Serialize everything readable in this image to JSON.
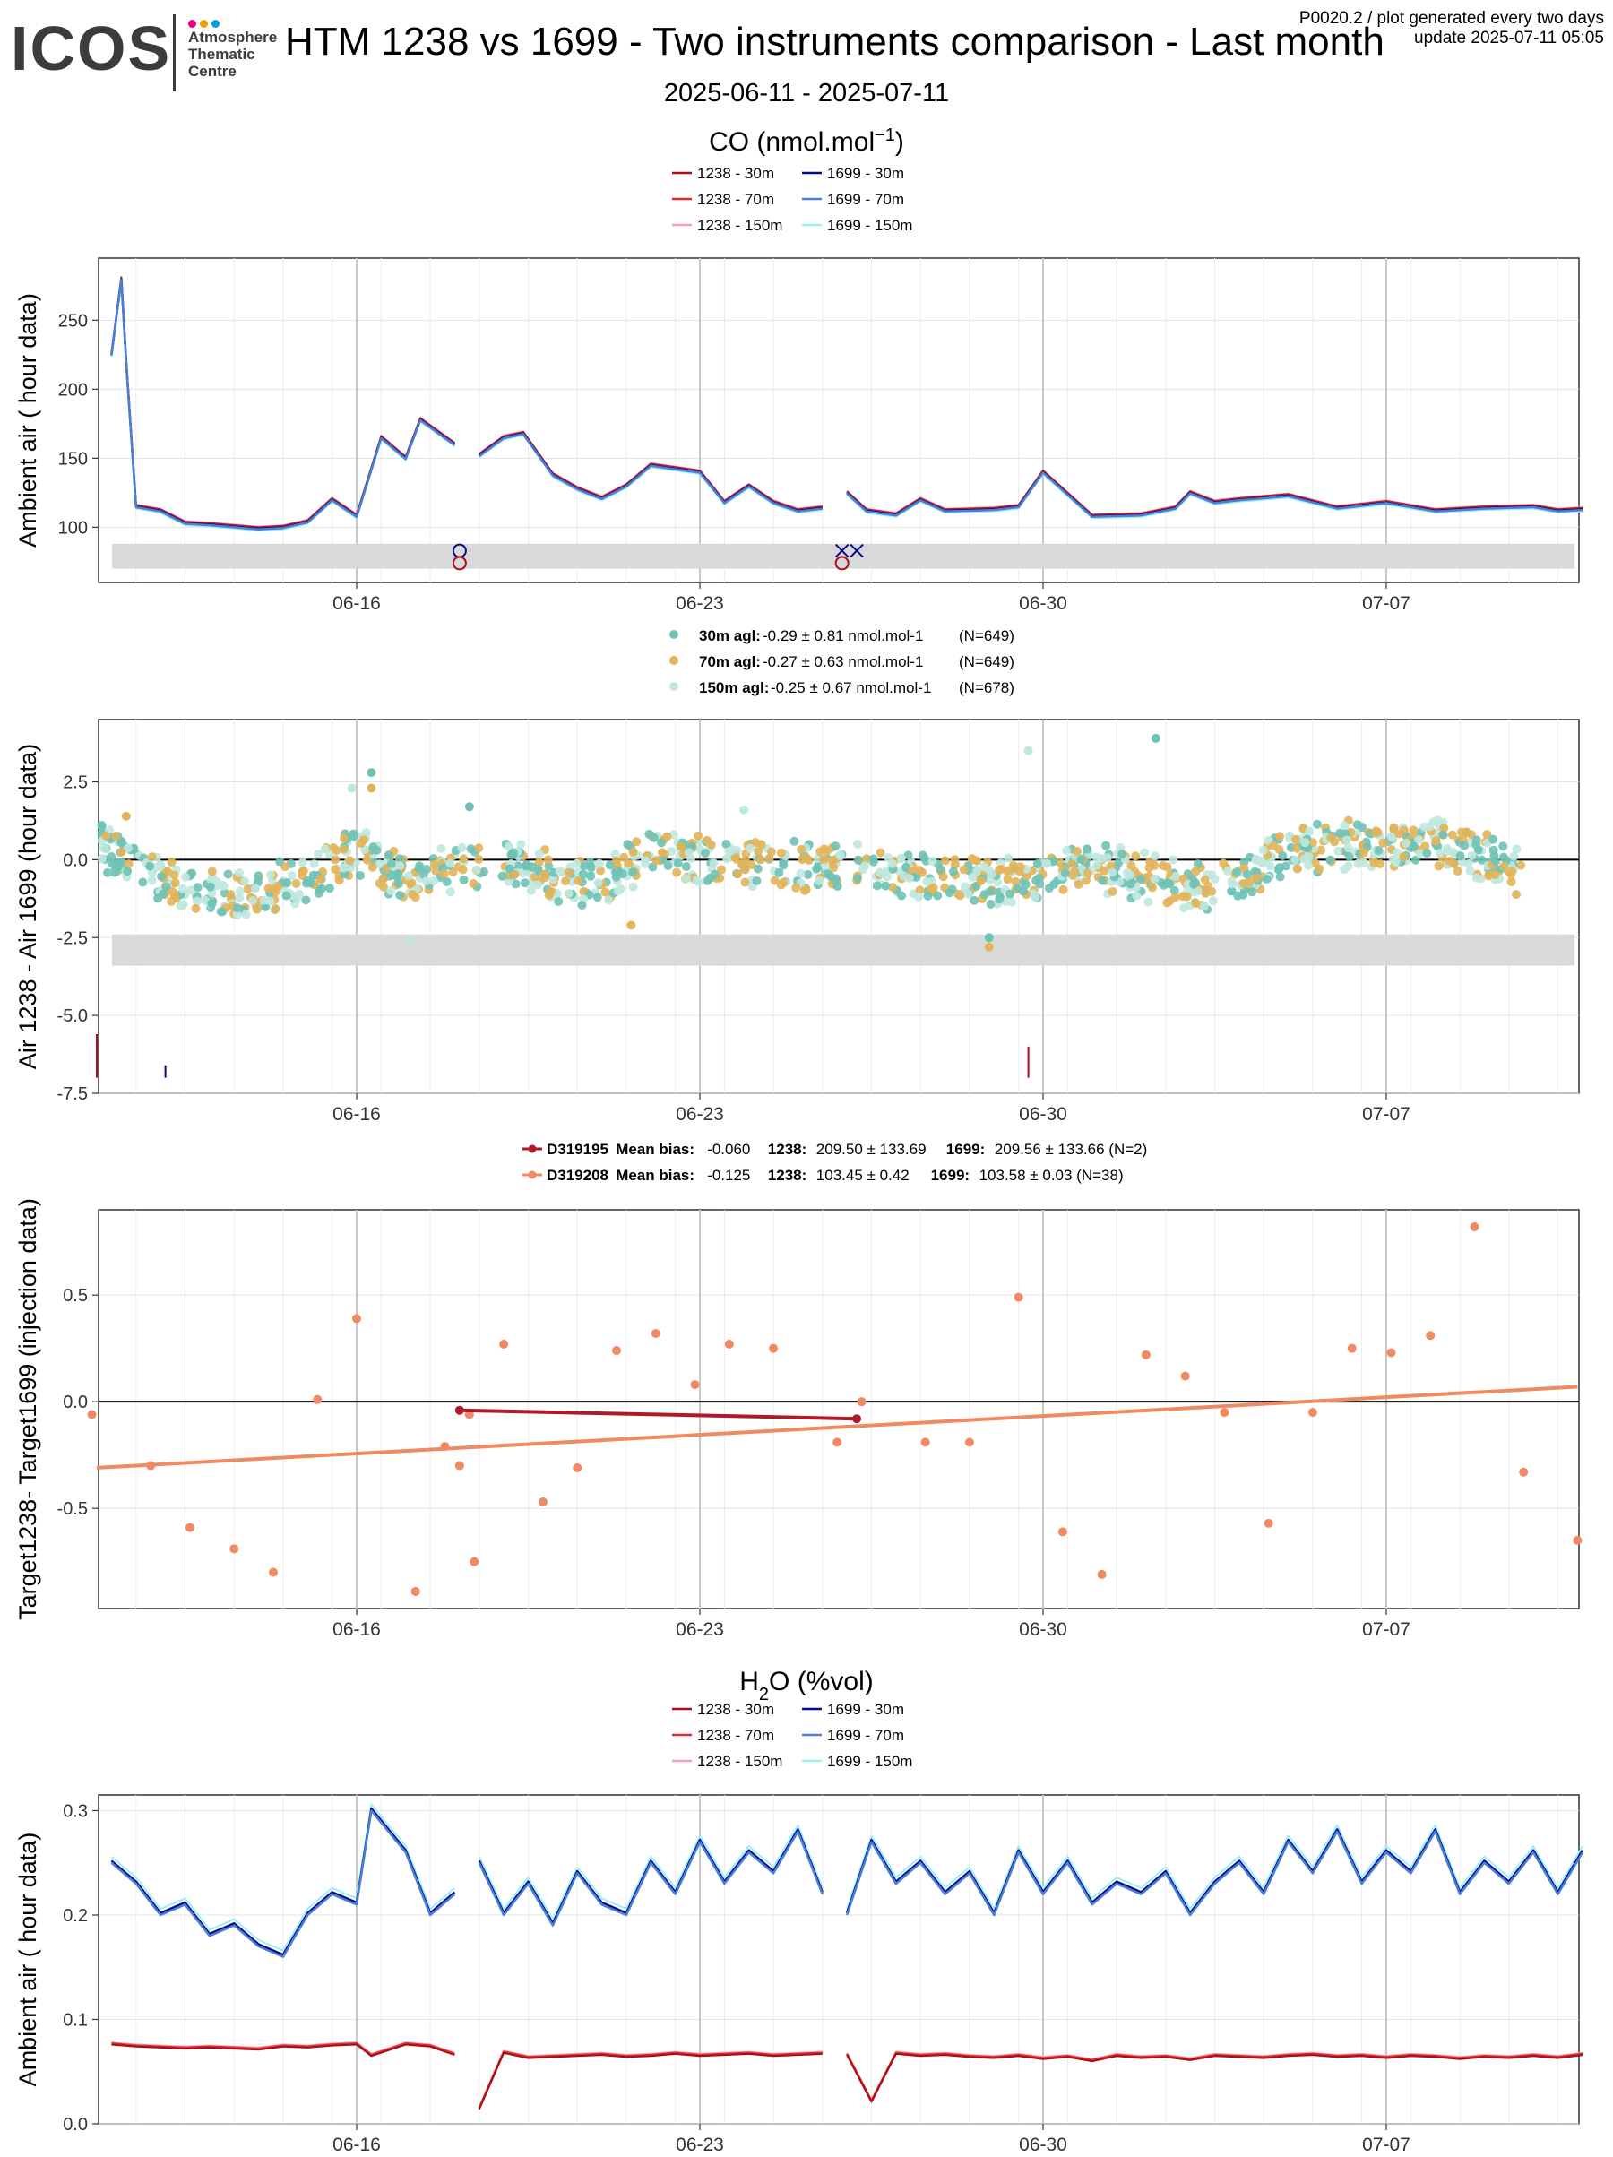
{
  "header": {
    "logo": "ICOS",
    "logo_sub": [
      "Atmosphere",
      "Thematic",
      "Centre"
    ],
    "title": "HTM 1238 vs 1699 - Two instruments comparison - Last month",
    "date_range": "2025-06-11 - 2025-07-11",
    "meta_line1": "P0020.2 / plot generated every two days",
    "meta_line2": "update  2025-07-11 05:05"
  },
  "colors": {
    "c1238_30": "#a50f15",
    "c1238_70": "#de2d26",
    "c1238_150": "#fc9fb5",
    "c1699_30": "#08088a",
    "c1699_70": "#4a7fd4",
    "c1699_150": "#9ef0f8",
    "bias30": "#6fc2b6",
    "bias70": "#e2b45a",
    "bias150": "#bfe8df",
    "target1": "#b2182b",
    "target2": "#ef8a62",
    "band": "#d9d9d9"
  },
  "chart_data": [
    {
      "type": "line",
      "title": "CO (nmol.mol-1)",
      "ylabel": "Ambient air ( hour data)",
      "xlabel": "",
      "x_ticks": [
        "06-16",
        "06-23",
        "06-30",
        "07-07"
      ],
      "ylim": [
        60,
        295
      ],
      "y_ticks": [
        100,
        150,
        200,
        250
      ],
      "legend": [
        "1238 - 30m",
        "1699 - 30m",
        "1238 - 70m",
        "1699 - 70m",
        "1238 - 150m",
        "1699 - 150m"
      ],
      "series_x_days": [
        0,
        0.2,
        0.3,
        0.5,
        1,
        1.5,
        2,
        3,
        3.5,
        4,
        4.5,
        5,
        5.5,
        6,
        6.3,
        7,
        7.5,
        8,
        8.4,
        9,
        9.5,
        10,
        10.5,
        11,
        12,
        12.5,
        13,
        13.5,
        14,
        14.5,
        15,
        15.4,
        16,
        16.5,
        17,
        18,
        18.5,
        19,
        20,
        21,
        21.7,
        22,
        22.5,
        23,
        24,
        25,
        26,
        27,
        28,
        29,
        29.5,
        30
      ],
      "series_values": [
        225,
        280,
        220,
        115,
        112,
        103,
        102,
        99,
        100,
        104,
        120,
        108,
        165,
        150,
        178,
        160,
        152,
        165,
        168,
        138,
        128,
        121,
        130,
        145,
        140,
        118,
        130,
        118,
        112,
        114,
        125,
        112,
        109,
        120,
        112,
        113,
        115,
        140,
        108,
        109,
        114,
        125,
        118,
        120,
        123,
        114,
        118,
        112,
        114,
        115,
        112,
        113
      ],
      "gap_after_x_days": [
        7.2,
        14.8
      ],
      "band": [
        70,
        88
      ],
      "flag_markers": [
        {
          "x_day": 7.1,
          "value": 83,
          "symbol": "circle",
          "series": "1699"
        },
        {
          "x_day": 7.1,
          "value": 74,
          "symbol": "circle",
          "series": "1238"
        },
        {
          "x_day": 14.9,
          "value": 83,
          "symbol": "cross",
          "series": "1699"
        },
        {
          "x_day": 15.2,
          "value": 83,
          "symbol": "cross",
          "series": "1699"
        },
        {
          "x_day": 14.9,
          "value": 74,
          "symbol": "circle",
          "series": "1238"
        }
      ]
    },
    {
      "type": "scatter",
      "title": "",
      "ylabel": "Air 1238 - Air 1699 (hour data)",
      "x_ticks": [
        "06-16",
        "06-23",
        "06-30",
        "07-07"
      ],
      "ylim": [
        -7.5,
        4.5
      ],
      "y_ticks": [
        -7.5,
        -5.0,
        -2.5,
        0.0,
        2.5
      ],
      "band": [
        -3.4,
        -2.4
      ],
      "series": [
        {
          "name": "30m agl",
          "stats": "-0.29 ± 0.81 nmol.mol-1",
          "n": "(N=649)"
        },
        {
          "name": "70m agl",
          "stats": "-0.27 ± 0.63 nmol.mol-1",
          "n": "(N=649)"
        },
        {
          "name": "150m agl",
          "stats": "-0.25 ± 0.67 nmol.mol-1",
          "n": "(N=678)"
        }
      ],
      "trend_days": [
        0,
        1,
        2,
        3,
        4,
        5,
        5.5,
        6,
        7,
        8,
        9,
        10,
        11,
        12,
        13,
        14,
        15,
        16,
        17,
        18,
        19,
        20,
        21,
        22,
        23,
        24,
        25,
        26,
        27,
        28,
        29
      ],
      "trend_values": [
        0.2,
        -0.6,
        -1.1,
        -1.0,
        -0.6,
        0.3,
        -0.2,
        -0.7,
        -0.3,
        0.0,
        -0.6,
        -0.8,
        0.3,
        0.0,
        -0.1,
        -0.2,
        -0.2,
        -0.5,
        -0.6,
        -0.8,
        -0.5,
        -0.2,
        -0.6,
        -0.9,
        -0.6,
        0.3,
        0.5,
        0.4,
        0.5,
        0.1,
        -0.6
      ],
      "outliers": [
        {
          "x_day": -0.2,
          "value": 1.1
        },
        {
          "x_day": 0.3,
          "value": 1.4
        },
        {
          "x_day": 4.9,
          "value": 2.3
        },
        {
          "x_day": 5.3,
          "value": 2.8
        },
        {
          "x_day": 5.3,
          "value": 2.3
        },
        {
          "x_day": 6.1,
          "value": -2.6
        },
        {
          "x_day": 7.3,
          "value": 1.7
        },
        {
          "x_day": 10.6,
          "value": -2.1
        },
        {
          "x_day": 12.9,
          "value": 1.6
        },
        {
          "x_day": 17.9,
          "value": -2.5
        },
        {
          "x_day": 17.9,
          "value": -2.8
        },
        {
          "x_day": 18.7,
          "value": 3.5
        },
        {
          "x_day": 21.3,
          "value": 3.9
        }
      ],
      "ticks_low": [
        {
          "x_day": -0.3,
          "from": -7.0,
          "to": -5.6,
          "series": "1238"
        },
        {
          "x_day": 1.1,
          "from": -7.0,
          "to": -6.6,
          "series": "1699"
        },
        {
          "x_day": 18.7,
          "from": -7.0,
          "to": -6.0,
          "series": "1238"
        }
      ]
    },
    {
      "type": "scatter",
      "title": "",
      "ylabel": "Target1238- Target1699 (injection data)",
      "x_ticks": [
        "06-16",
        "06-23",
        "06-30",
        "07-07"
      ],
      "ylim": [
        -0.97,
        0.9
      ],
      "y_ticks": [
        -0.5,
        0.0,
        0.5
      ],
      "series": [
        {
          "name": "D319195",
          "mean_bias": "-0.060",
          "v1238": "209.50 ± 133.69",
          "v1699": "209.56 ± 133.66 (N=2)"
        },
        {
          "name": "D319208",
          "mean_bias": "-0.125",
          "v1238": "103.45 ± 0.42",
          "v1699": "103.58 ± 0.03 (N=38)"
        }
      ],
      "d319195_points": [
        {
          "x_day": 7.1,
          "value": -0.04
        },
        {
          "x_day": 15.2,
          "value": -0.08
        }
      ],
      "d319208_fit": [
        {
          "x_day": -0.3,
          "value": -0.31
        },
        {
          "x_day": 29.9,
          "value": 0.07
        }
      ],
      "d319208_points": [
        {
          "x_day": -0.4,
          "value": -0.06
        },
        {
          "x_day": 0.8,
          "value": -0.3
        },
        {
          "x_day": 1.6,
          "value": -0.59
        },
        {
          "x_day": 2.5,
          "value": -0.69
        },
        {
          "x_day": 3.3,
          "value": -0.8
        },
        {
          "x_day": 4.2,
          "value": 0.01
        },
        {
          "x_day": 5.0,
          "value": 0.39
        },
        {
          "x_day": 6.2,
          "value": -0.89
        },
        {
          "x_day": 6.8,
          "value": -0.21
        },
        {
          "x_day": 7.1,
          "value": -0.3
        },
        {
          "x_day": 7.3,
          "value": -0.06
        },
        {
          "x_day": 7.4,
          "value": -0.75
        },
        {
          "x_day": 8.0,
          "value": 0.27
        },
        {
          "x_day": 8.8,
          "value": -0.47
        },
        {
          "x_day": 9.5,
          "value": -0.31
        },
        {
          "x_day": 10.3,
          "value": 0.24
        },
        {
          "x_day": 11.1,
          "value": 0.32
        },
        {
          "x_day": 11.9,
          "value": 0.08
        },
        {
          "x_day": 12.6,
          "value": 0.27
        },
        {
          "x_day": 13.5,
          "value": 0.25
        },
        {
          "x_day": 14.8,
          "value": -0.19
        },
        {
          "x_day": 15.3,
          "value": 0.0
        },
        {
          "x_day": 16.6,
          "value": -0.19
        },
        {
          "x_day": 17.5,
          "value": -0.19
        },
        {
          "x_day": 18.5,
          "value": 0.49
        },
        {
          "x_day": 19.4,
          "value": -0.61
        },
        {
          "x_day": 20.2,
          "value": -0.81
        },
        {
          "x_day": 21.1,
          "value": 0.22
        },
        {
          "x_day": 21.9,
          "value": 0.12
        },
        {
          "x_day": 22.7,
          "value": -0.05
        },
        {
          "x_day": 23.6,
          "value": -0.57
        },
        {
          "x_day": 24.5,
          "value": -0.05
        },
        {
          "x_day": 25.3,
          "value": 0.25
        },
        {
          "x_day": 26.1,
          "value": 0.23
        },
        {
          "x_day": 26.9,
          "value": 0.31
        },
        {
          "x_day": 27.8,
          "value": 0.82
        },
        {
          "x_day": 28.8,
          "value": -0.33
        },
        {
          "x_day": 29.9,
          "value": -0.65
        }
      ]
    },
    {
      "type": "line",
      "title": "H2O (%vol)",
      "ylabel": "Ambient air ( hour data)",
      "x_ticks": [
        "06-16",
        "06-23",
        "06-30",
        "07-07"
      ],
      "ylim": [
        0,
        0.315
      ],
      "y_ticks": [
        0.0,
        0.1,
        0.2,
        0.3
      ],
      "legend": [
        "1238 - 30m",
        "1699 - 30m",
        "1238 - 70m",
        "1699 - 70m",
        "1238 - 150m",
        "1699 - 150m"
      ],
      "series_x_days": [
        0,
        0.5,
        1,
        1.5,
        2,
        2.5,
        3,
        3.5,
        4,
        4.5,
        5,
        5.3,
        6,
        6.5,
        7,
        7.5,
        8,
        8.5,
        9,
        9.5,
        10,
        10.5,
        11,
        11.5,
        12,
        12.5,
        13,
        13.5,
        14,
        14.5,
        15,
        15.5,
        16,
        16.5,
        17,
        17.5,
        18,
        18.5,
        19,
        19.5,
        20,
        20.5,
        21,
        21.5,
        22,
        22.5,
        23,
        23.5,
        24,
        24.5,
        25,
        25.5,
        26,
        26.5,
        27,
        27.5,
        28,
        28.5,
        29,
        29.5,
        30
      ],
      "series_values": [
        0.25,
        0.23,
        0.2,
        0.21,
        0.18,
        0.19,
        0.17,
        0.16,
        0.2,
        0.22,
        0.21,
        0.3,
        0.26,
        0.2,
        0.22,
        0.25,
        0.2,
        0.23,
        0.19,
        0.24,
        0.21,
        0.2,
        0.25,
        0.22,
        0.27,
        0.23,
        0.26,
        0.24,
        0.28,
        0.22,
        0.2,
        0.27,
        0.23,
        0.25,
        0.22,
        0.24,
        0.2,
        0.26,
        0.22,
        0.25,
        0.21,
        0.23,
        0.22,
        0.24,
        0.2,
        0.23,
        0.25,
        0.22,
        0.27,
        0.24,
        0.28,
        0.23,
        0.26,
        0.24,
        0.28,
        0.22,
        0.25,
        0.23,
        0.26,
        0.22,
        0.26
      ],
      "series1238_values": [
        0.077,
        0.075,
        0.074,
        0.073,
        0.074,
        0.073,
        0.072,
        0.075,
        0.074,
        0.076,
        0.077,
        0.066,
        0.077,
        0.075,
        0.067,
        0.015,
        0.069,
        0.064,
        0.065,
        0.066,
        0.067,
        0.065,
        0.066,
        0.068,
        0.066,
        0.067,
        0.068,
        0.066,
        0.067,
        0.068,
        0.067,
        0.022,
        0.068,
        0.066,
        0.067,
        0.065,
        0.064,
        0.066,
        0.063,
        0.065,
        0.061,
        0.066,
        0.064,
        0.065,
        0.062,
        0.066,
        0.065,
        0.064,
        0.066,
        0.067,
        0.065,
        0.066,
        0.064,
        0.066,
        0.065,
        0.063,
        0.065,
        0.064,
        0.066,
        0.064,
        0.067
      ],
      "gap_after_x_days": [
        7.2,
        14.8
      ]
    }
  ]
}
